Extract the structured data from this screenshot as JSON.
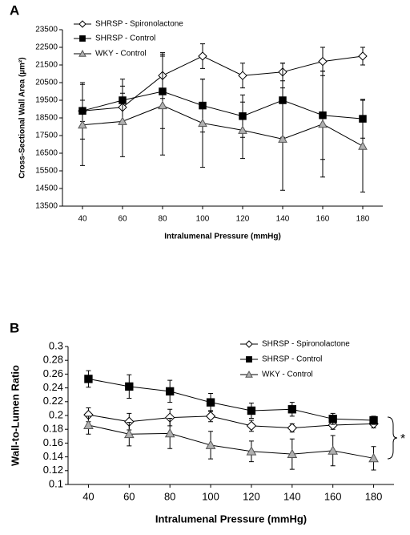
{
  "chart_data": [
    {
      "type": "line",
      "panel": "A",
      "xlabel": "Intralumenal Pressure (mmHg)",
      "ylabel": "Cross-Sectional Wall Area (µm²)",
      "x": [
        40,
        60,
        80,
        100,
        120,
        140,
        160,
        180
      ],
      "xlim": [
        30,
        190
      ],
      "xticks": [
        40,
        60,
        80,
        100,
        120,
        140,
        160,
        180
      ],
      "ylim": [
        13500,
        23500
      ],
      "yticks": [
        13500,
        14500,
        15500,
        16500,
        17500,
        18500,
        19500,
        20500,
        21500,
        22500,
        23500
      ],
      "series": [
        {
          "name": "SHRSP - Spironolactone",
          "marker": "diamond",
          "color": "#ffffff",
          "values": [
            18900,
            19100,
            20900,
            22000,
            20900,
            21100,
            21700,
            22000
          ],
          "errors": [
            600,
            800,
            1300,
            700,
            700,
            500,
            800,
            500
          ]
        },
        {
          "name": "SHRSP - Control",
          "marker": "square",
          "color": "#000000",
          "values": [
            18900,
            19500,
            20000,
            19200,
            18600,
            19500,
            18650,
            18450
          ],
          "errors": [
            1600,
            1200,
            2100,
            1500,
            1200,
            2100,
            2500,
            1100
          ]
        },
        {
          "name": "WKY - Control",
          "marker": "triangle",
          "color": "#b0b0b0",
          "values": [
            18100,
            18300,
            19200,
            18200,
            17800,
            17300,
            18150,
            16900
          ],
          "errors": [
            2300,
            2000,
            2800,
            2500,
            1600,
            2900,
            3000,
            2600
          ]
        }
      ]
    },
    {
      "type": "line",
      "panel": "B",
      "xlabel": "Intralumenal Pressure (mmHg)",
      "ylabel": "Wall-to-Lumen Ratio",
      "x": [
        40,
        60,
        80,
        100,
        120,
        140,
        160,
        180
      ],
      "xlim": [
        30,
        190
      ],
      "xticks": [
        40,
        60,
        80,
        100,
        120,
        140,
        160,
        180
      ],
      "ylim": [
        0.1,
        0.3
      ],
      "yticks": [
        0.1,
        0.12,
        0.14,
        0.16,
        0.18,
        0.2,
        0.22,
        0.24,
        0.26,
        0.28,
        0.3
      ],
      "annotation": "*",
      "series": [
        {
          "name": "SHRSP - Spironolactone",
          "marker": "diamond",
          "color": "#ffffff",
          "values": [
            0.201,
            0.191,
            0.197,
            0.199,
            0.185,
            0.182,
            0.186,
            0.188
          ],
          "errors": [
            0.01,
            0.012,
            0.012,
            0.008,
            0.008,
            0.006,
            0.006,
            0.006
          ]
        },
        {
          "name": "SHRSP - Control",
          "marker": "square",
          "color": "#000000",
          "values": [
            0.253,
            0.242,
            0.235,
            0.219,
            0.207,
            0.209,
            0.195,
            0.193
          ],
          "errors": [
            0.012,
            0.017,
            0.016,
            0.013,
            0.011,
            0.01,
            0.008,
            0.006
          ]
        },
        {
          "name": "WKY - Control",
          "marker": "triangle",
          "color": "#b0b0b0",
          "values": [
            0.186,
            0.173,
            0.174,
            0.157,
            0.148,
            0.144,
            0.149,
            0.138
          ],
          "errors": [
            0.013,
            0.017,
            0.022,
            0.02,
            0.015,
            0.022,
            0.022,
            0.017
          ]
        }
      ]
    }
  ]
}
